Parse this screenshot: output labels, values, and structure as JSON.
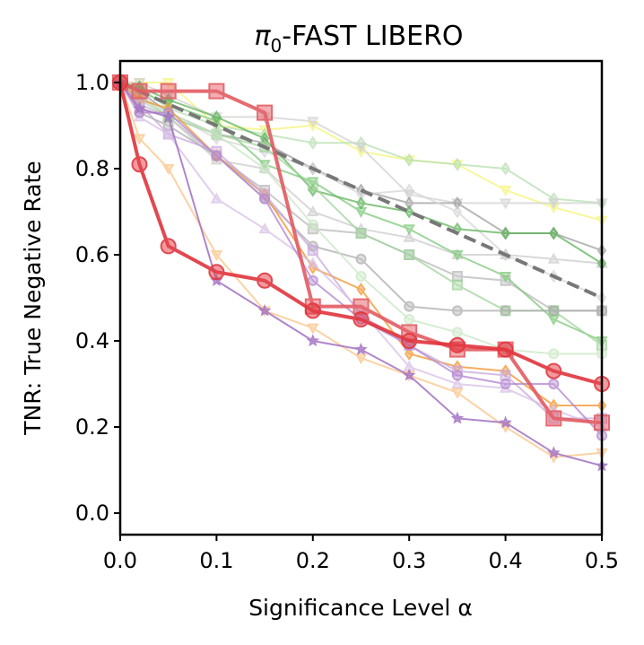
{
  "chart_data": {
    "type": "line",
    "title": "π",
    "title_subscript": "0",
    "title_suffix": "-FAST LIBERO",
    "xlabel": "Significance Level α",
    "ylabel": "TNR: True Negative Rate",
    "xlim": [
      0.0,
      0.5
    ],
    "ylim": [
      -0.05,
      1.05
    ],
    "xticks": [
      0.0,
      0.1,
      0.2,
      0.3,
      0.4,
      0.5
    ],
    "xtick_labels": [
      "0.0",
      "0.1",
      "0.2",
      "0.3",
      "0.4",
      "0.5"
    ],
    "yticks": [
      0.0,
      0.2,
      0.4,
      0.6,
      0.8,
      1.0
    ],
    "ytick_labels": [
      "0.0",
      "0.2",
      "0.4",
      "0.6",
      "0.8",
      "1.0"
    ],
    "grid": false,
    "x": [
      0.0,
      0.02,
      0.05,
      0.1,
      0.15,
      0.2,
      0.25,
      0.3,
      0.35,
      0.4,
      0.45,
      0.5
    ],
    "series": [
      {
        "name": "yellow",
        "color": "#f5f57a",
        "marker": "triangle-down",
        "opacity": 0.75,
        "width": 2,
        "values": [
          1.0,
          1.0,
          1.0,
          0.9,
          0.89,
          0.9,
          0.84,
          0.82,
          0.81,
          0.75,
          0.71,
          0.68
        ]
      },
      {
        "name": "light-green-diamond",
        "color": "#b7dfb2",
        "marker": "diamond",
        "opacity": 0.75,
        "width": 2,
        "values": [
          1.0,
          0.99,
          0.94,
          0.9,
          0.88,
          0.86,
          0.86,
          0.82,
          0.81,
          0.8,
          0.73,
          0.72
        ]
      },
      {
        "name": "light-gray-triangle-down",
        "color": "#d2d2d2",
        "marker": "triangle-down",
        "opacity": 0.75,
        "width": 2,
        "values": [
          1.0,
          1.0,
          0.97,
          0.92,
          0.92,
          0.91,
          0.85,
          0.74,
          0.72,
          0.72,
          0.72,
          0.72
        ]
      },
      {
        "name": "gray-diamond",
        "color": "#9a9a9a",
        "marker": "diamond",
        "opacity": 0.7,
        "width": 2,
        "values": [
          1.0,
          0.98,
          0.93,
          0.88,
          0.86,
          0.8,
          0.75,
          0.72,
          0.72,
          0.65,
          0.65,
          0.61
        ]
      },
      {
        "name": "gray-square",
        "color": "#b4b4b4",
        "marker": "square",
        "opacity": 0.7,
        "width": 2,
        "values": [
          1.0,
          0.95,
          0.92,
          0.83,
          0.75,
          0.66,
          0.65,
          0.6,
          0.55,
          0.54,
          0.47,
          0.47
        ]
      },
      {
        "name": "light-gray-diamond",
        "color": "#d6d6d6",
        "marker": "diamond",
        "opacity": 0.75,
        "width": 2,
        "values": [
          1.0,
          0.97,
          0.93,
          0.87,
          0.84,
          0.8,
          0.74,
          0.75,
          0.7,
          0.6,
          0.55,
          0.5
        ]
      },
      {
        "name": "light-gray-triangle-up",
        "color": "#cccccc",
        "marker": "triangle-up",
        "opacity": 0.75,
        "width": 2,
        "values": [
          1.0,
          0.96,
          0.92,
          0.82,
          0.8,
          0.7,
          0.66,
          0.64,
          0.6,
          0.6,
          0.59,
          0.58
        ]
      },
      {
        "name": "green-triangle-down",
        "color": "#7ec87a",
        "marker": "triangle-down",
        "opacity": 0.75,
        "width": 2,
        "values": [
          1.0,
          0.98,
          0.95,
          0.91,
          0.81,
          0.77,
          0.7,
          0.66,
          0.6,
          0.55,
          0.45,
          0.4
        ]
      },
      {
        "name": "green-diamond",
        "color": "#5fb35a",
        "marker": "diamond",
        "opacity": 0.75,
        "width": 2,
        "values": [
          1.0,
          0.99,
          0.96,
          0.92,
          0.87,
          0.75,
          0.72,
          0.7,
          0.66,
          0.65,
          0.65,
          0.58
        ]
      },
      {
        "name": "green-square",
        "color": "#9fd49a",
        "marker": "square",
        "opacity": 0.75,
        "width": 2,
        "values": [
          1.0,
          0.97,
          0.92,
          0.88,
          0.85,
          0.76,
          0.65,
          0.6,
          0.53,
          0.47,
          0.47,
          0.39
        ]
      },
      {
        "name": "gray-circle",
        "color": "#a8a8a8",
        "marker": "circle",
        "opacity": 0.7,
        "width": 2,
        "values": [
          1.0,
          0.93,
          0.9,
          0.83,
          0.73,
          0.62,
          0.59,
          0.48,
          0.47,
          0.47,
          0.47,
          0.47
        ]
      },
      {
        "name": "light-green-circle",
        "color": "#c9e7c4",
        "marker": "circle",
        "opacity": 0.75,
        "width": 2,
        "values": [
          1.0,
          0.96,
          0.93,
          0.88,
          0.8,
          0.67,
          0.55,
          0.45,
          0.42,
          0.38,
          0.37,
          0.37
        ]
      },
      {
        "name": "orange-diamond",
        "color": "#f59a3a",
        "marker": "diamond",
        "opacity": 0.8,
        "width": 2,
        "values": [
          1.0,
          0.96,
          0.94,
          0.83,
          0.74,
          0.57,
          0.52,
          0.37,
          0.34,
          0.33,
          0.25,
          0.25
        ]
      },
      {
        "name": "lavender-square",
        "color": "#c8a8dc",
        "marker": "square",
        "opacity": 0.75,
        "width": 2,
        "values": [
          1.0,
          0.95,
          0.88,
          0.84,
          0.74,
          0.61,
          0.46,
          0.39,
          0.33,
          0.32,
          0.22,
          0.22
        ]
      },
      {
        "name": "lavender-triangle-up",
        "color": "#d7bfe6",
        "marker": "triangle-up",
        "opacity": 0.75,
        "width": 2,
        "values": [
          1.0,
          0.92,
          0.88,
          0.73,
          0.66,
          0.58,
          0.47,
          0.34,
          0.3,
          0.29,
          0.24,
          0.2
        ]
      },
      {
        "name": "purple-circle",
        "color": "#b68ad1",
        "marker": "circle",
        "opacity": 0.8,
        "width": 2,
        "values": [
          1.0,
          0.93,
          0.93,
          0.83,
          0.73,
          0.54,
          0.45,
          0.39,
          0.32,
          0.3,
          0.3,
          0.18
        ]
      },
      {
        "name": "peach-triangle-down",
        "color": "#fcc78e",
        "marker": "triangle-down",
        "opacity": 0.8,
        "width": 2,
        "values": [
          1.0,
          0.87,
          0.8,
          0.6,
          0.47,
          0.43,
          0.36,
          0.32,
          0.28,
          0.2,
          0.13,
          0.14
        ]
      },
      {
        "name": "purple-star",
        "color": "#a272c2",
        "marker": "star",
        "opacity": 0.85,
        "width": 2,
        "values": [
          1.0,
          0.94,
          0.92,
          0.54,
          0.47,
          0.4,
          0.38,
          0.32,
          0.22,
          0.21,
          0.14,
          0.11
        ]
      },
      {
        "name": "random-baseline",
        "color": "#777777",
        "marker": "none",
        "dashed": true,
        "opacity": 1.0,
        "width": 4,
        "values": [
          1.0,
          0.98,
          0.95,
          0.9,
          0.85,
          0.8,
          0.75,
          0.7,
          0.65,
          0.6,
          0.55,
          0.5
        ]
      },
      {
        "name": "red-square",
        "color": "#e35b62",
        "marker": "square",
        "opacity": 0.9,
        "width": 4,
        "values": [
          1.0,
          0.98,
          0.98,
          0.98,
          0.93,
          0.48,
          0.48,
          0.42,
          0.38,
          0.38,
          0.22,
          0.21
        ]
      },
      {
        "name": "red-circle",
        "color": "#e1343c",
        "marker": "circle",
        "opacity": 0.9,
        "width": 4,
        "values": [
          1.0,
          0.81,
          0.62,
          0.56,
          0.54,
          0.47,
          0.45,
          0.4,
          0.39,
          0.38,
          0.33,
          0.3
        ]
      }
    ]
  }
}
